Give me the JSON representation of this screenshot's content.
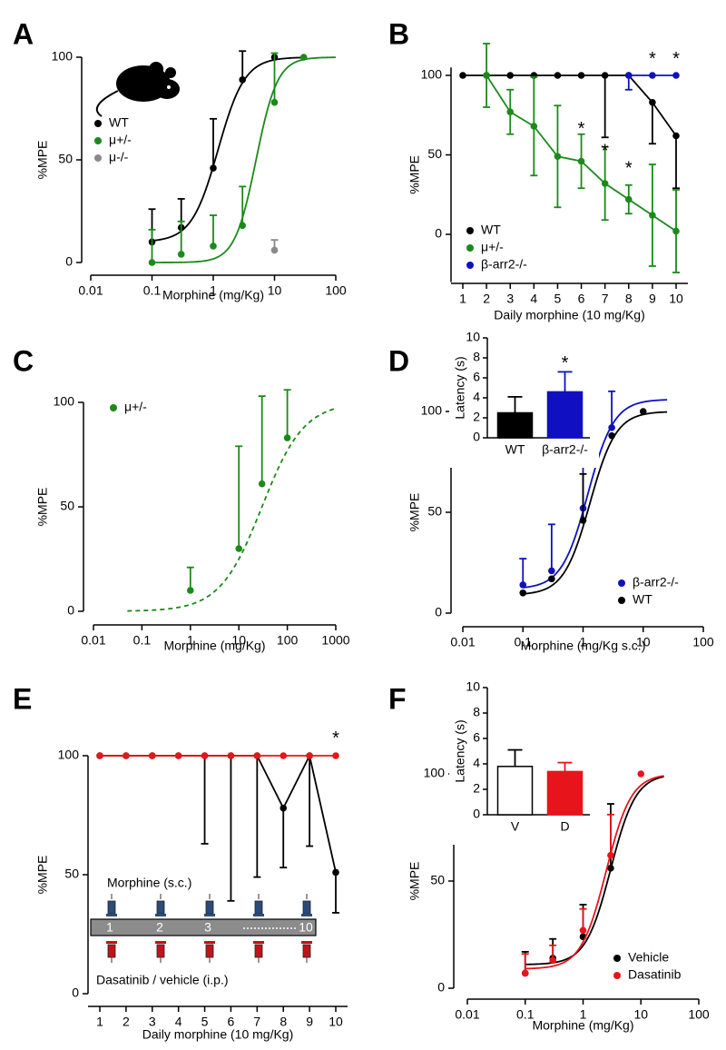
{
  "chart_data": [
    {
      "panel": "A",
      "type": "scatter",
      "log_x": true,
      "xlabel": "Morphine (mg/Kg)",
      "ylabel": "%MPE",
      "xlim": [
        0.01,
        100
      ],
      "xticks": [
        0.01,
        0.1,
        1,
        10,
        100
      ],
      "ylim": [
        0,
        100
      ],
      "yticks": [
        0,
        50,
        100
      ],
      "legend": "upper left",
      "series": [
        {
          "name": "WT",
          "color": "#000000",
          "x": [
            0.1,
            0.3,
            1,
            3,
            10
          ],
          "values": [
            10,
            17,
            46,
            89,
            100
          ],
          "errors": [
            16,
            14,
            24,
            14,
            null
          ],
          "error_bars": "up",
          "fit": {
            "bottom": 10,
            "top": 100,
            "ec50": 1.2,
            "hill": 2,
            "range": [
              0.1,
              30
            ]
          }
        },
        {
          "name": "μ+/-",
          "color": "#1a8a1a",
          "x": [
            0.1,
            0.3,
            1,
            3,
            10,
            30
          ],
          "values": [
            0,
            4,
            8,
            18,
            78,
            100
          ],
          "errors": [
            16,
            16,
            15,
            19,
            24,
            null
          ],
          "error_bars": "up",
          "fit": {
            "bottom": 0,
            "top": 100,
            "ec50": 5,
            "hill": 2.5,
            "range": [
              0.1,
              100
            ]
          }
        },
        {
          "name": "μ-/-",
          "color": "#8a8a8a",
          "x": [
            10
          ],
          "values": [
            6
          ],
          "errors": [
            5
          ],
          "error_bars": "up"
        }
      ]
    },
    {
      "panel": "B",
      "type": "line",
      "log_x": false,
      "xlabel": "Daily morphine (10 mg/Kg)",
      "ylabel": "%MPE",
      "xlim": [
        1,
        10
      ],
      "xticks": [
        1,
        2,
        3,
        4,
        5,
        6,
        7,
        8,
        9,
        10
      ],
      "ylim": [
        -30,
        105
      ],
      "yticks": [
        0,
        50,
        100
      ],
      "legend": "lower left",
      "series": [
        {
          "name": "WT",
          "color": "#000000",
          "x": [
            1,
            2,
            3,
            4,
            5,
            6,
            7,
            8,
            9,
            10
          ],
          "values": [
            100,
            100,
            100,
            100,
            100,
            100,
            100,
            100,
            83,
            62
          ],
          "errors": [
            null,
            null,
            null,
            null,
            null,
            null,
            39,
            null,
            26,
            33
          ],
          "error_bars": "down"
        },
        {
          "name": "μ+/-",
          "color": "#1a8a1a",
          "x": [
            1,
            2,
            3,
            4,
            5,
            6,
            7,
            8,
            9,
            10
          ],
          "values": [
            null,
            100,
            77,
            68,
            49,
            46,
            32,
            22,
            12,
            2
          ],
          "errors": [
            null,
            20,
            14,
            31,
            32,
            17,
            23,
            9,
            32,
            26
          ],
          "error_bars": "both"
        },
        {
          "name": "β-arr2-/-",
          "color": "#1010c0",
          "x": [
            1,
            2,
            3,
            4,
            5,
            6,
            7,
            8,
            9,
            10
          ],
          "values": [
            null,
            null,
            null,
            null,
            null,
            null,
            null,
            100,
            100,
            100
          ],
          "errors": [
            null,
            null,
            null,
            null,
            null,
            null,
            null,
            9,
            null,
            null
          ],
          "error_bars": "down"
        }
      ],
      "annotations": [
        {
          "text": "*",
          "x": 6,
          "y": 66
        },
        {
          "text": "*",
          "x": 7,
          "y": 52
        },
        {
          "text": "*",
          "x": 8,
          "y": 41
        },
        {
          "text": "*",
          "x": 9,
          "y": 110
        },
        {
          "text": "*",
          "x": 10,
          "y": 110
        }
      ]
    },
    {
      "panel": "C",
      "type": "scatter",
      "log_x": true,
      "xlabel": "Morphine (mg/Kg)",
      "ylabel": "%MPE",
      "xlim": [
        0.01,
        1000
      ],
      "xticks": [
        0.01,
        0.1,
        1,
        10,
        100,
        1000
      ],
      "ylim": [
        0,
        100
      ],
      "yticks": [
        0,
        50,
        100
      ],
      "legend": "upper left",
      "series": [
        {
          "name": "μ+/-",
          "color": "#1a8a1a",
          "x": [
            1,
            10,
            30,
            100
          ],
          "values": [
            10,
            30,
            61,
            83
          ],
          "errors": [
            11,
            49,
            42,
            23
          ],
          "error_bars": "up",
          "fit": {
            "bottom": 0,
            "top": 100,
            "ec50": 30,
            "hill": 1,
            "range": [
              0.05,
              1000
            ],
            "dashed": true
          }
        }
      ]
    },
    {
      "panel": "D",
      "type": "scatter",
      "log_x": true,
      "xlabel": "Morphine (mg/Kg s.c.)",
      "ylabel": "%MPE",
      "xlim": [
        0.01,
        100
      ],
      "xticks": [
        0.01,
        0.1,
        1,
        10,
        100
      ],
      "ylim": [
        0,
        100
      ],
      "yticks": [
        0,
        50,
        100
      ],
      "legend": "lower right",
      "series": [
        {
          "name": "β-arr2-/-",
          "color": "#1010c0",
          "x": [
            0.1,
            0.3,
            1,
            3
          ],
          "values": [
            14,
            21,
            52,
            92
          ],
          "errors": [
            13,
            23,
            24,
            18
          ],
          "error_bars": "up",
          "fit": {
            "bottom": 12,
            "top": 106,
            "ec50": 1.2,
            "hill": 2,
            "range": [
              0.1,
              25
            ]
          }
        },
        {
          "name": "WT",
          "color": "#000000",
          "x": [
            0.1,
            0.3,
            1,
            3,
            10
          ],
          "values": [
            10,
            17,
            46,
            88,
            100
          ],
          "errors": [
            null,
            null,
            23,
            null,
            null
          ],
          "error_bars": "up",
          "fit": {
            "bottom": 9,
            "top": 100,
            "ec50": 1.3,
            "hill": 2,
            "range": [
              0.1,
              25
            ]
          }
        }
      ],
      "inset": {
        "type": "bar",
        "ylabel": "Latency (s)",
        "categories": [
          "WT",
          "β-arr2-/-"
        ],
        "values": [
          2.5,
          4.6
        ],
        "errors": [
          1.6,
          2.0
        ],
        "colors": [
          "#000000",
          "#1010c0"
        ],
        "ylim": [
          0,
          10
        ],
        "yticks": [
          0,
          2,
          4,
          6,
          8,
          10
        ],
        "annotations": [
          {
            "text": "*",
            "index": 1,
            "y": 7.4
          }
        ]
      }
    },
    {
      "panel": "E",
      "type": "line",
      "log_x": false,
      "xlabel": "Daily morphine (10 mg/Kg)",
      "ylabel": "%MPE",
      "xlim": [
        1,
        10
      ],
      "xticks": [
        1,
        2,
        3,
        4,
        5,
        6,
        7,
        8,
        9,
        10
      ],
      "ylim": [
        0,
        100
      ],
      "yticks": [
        0,
        50,
        100
      ],
      "series": [
        {
          "color": "#000000",
          "x": [
            1,
            2,
            3,
            4,
            5,
            6,
            7,
            8,
            9,
            10
          ],
          "values": [
            100,
            100,
            100,
            100,
            100,
            100,
            100,
            78,
            100,
            51
          ],
          "errors": [
            null,
            null,
            null,
            null,
            37,
            61,
            51,
            25,
            38,
            17
          ],
          "error_bars": "down"
        },
        {
          "color": "#e8141b",
          "x": [
            1,
            2,
            3,
            4,
            5,
            6,
            7,
            8,
            9,
            10
          ],
          "values": [
            100,
            100,
            100,
            100,
            100,
            100,
            100,
            100,
            100,
            100
          ]
        }
      ],
      "annotations": [
        {
          "text": "*",
          "x": 10,
          "y": 107
        }
      ],
      "schedule": {
        "top_label": "Morphine (s.c.)",
        "bottom_label": "Dasatinib / vehicle (i.p.)",
        "day_labels": [
          "1",
          "2",
          "3",
          "10"
        ]
      }
    },
    {
      "panel": "F",
      "type": "scatter",
      "log_x": true,
      "xlabel": "Morphine (mg/Kg)",
      "ylabel": "%MPE",
      "xlim": [
        0.01,
        100
      ],
      "xticks": [
        0.01,
        0.1,
        1,
        10,
        100
      ],
      "ylim": [
        0,
        100
      ],
      "yticks": [
        0,
        50,
        100
      ],
      "legend": "lower right",
      "series": [
        {
          "name": "Vehicle",
          "color": "#000000",
          "x": [
            0.1,
            0.3,
            1,
            3
          ],
          "values": [
            7,
            14,
            24,
            56
          ],
          "errors": [
            10,
            9,
            15,
            30
          ],
          "error_bars": "up",
          "fit": {
            "bottom": 11,
            "top": 100,
            "ec50": 3,
            "hill": 2,
            "range": [
              0.1,
              25
            ]
          }
        },
        {
          "name": "Dasatinib",
          "color": "#e8141b",
          "x": [
            0.1,
            0.3,
            1,
            3,
            10
          ],
          "values": [
            7,
            13,
            27,
            62,
            100
          ],
          "errors": [
            9,
            7,
            10,
            19,
            null
          ],
          "error_bars": "up",
          "fit": {
            "bottom": 9,
            "top": 100,
            "ec50": 2.5,
            "hill": 2,
            "range": [
              0.1,
              25
            ]
          }
        }
      ],
      "inset": {
        "type": "bar",
        "ylabel": "Latency (s)",
        "categories": [
          "V",
          "D"
        ],
        "values": [
          3.8,
          3.4
        ],
        "errors": [
          1.3,
          0.7
        ],
        "colors": [
          "#ffffff",
          "#e8141b"
        ],
        "ylim": [
          0,
          10
        ],
        "yticks": [
          0,
          2,
          4,
          6,
          8,
          10
        ]
      }
    }
  ]
}
